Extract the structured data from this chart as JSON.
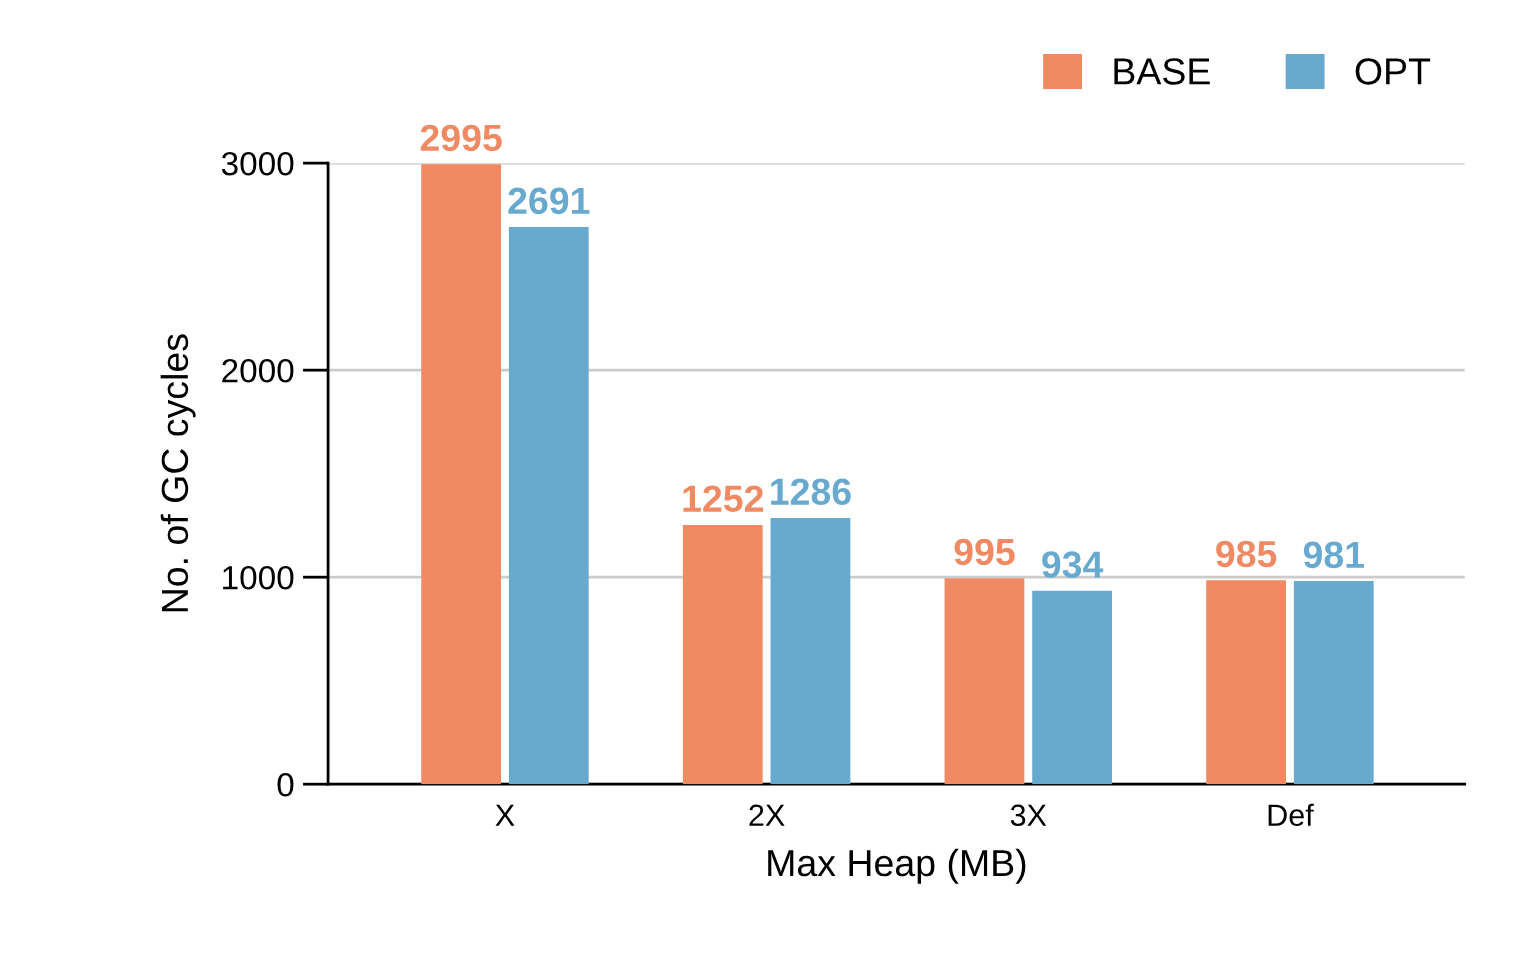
{
  "chart_data": {
    "type": "bar",
    "xlabel": "Max Heap (MB)",
    "ylabel": "No. of GC cycles",
    "categories": [
      "X",
      "2X",
      "3X",
      "Def"
    ],
    "series": [
      {
        "name": "BASE",
        "color": "#ef8a62",
        "values": [
          2995,
          1252,
          995,
          985
        ]
      },
      {
        "name": "OPT",
        "color": "#67a9cf",
        "values": [
          2691,
          1286,
          934,
          981
        ]
      }
    ],
    "ylim": [
      0,
      3000
    ],
    "yticks": [
      0,
      1000,
      2000,
      3000
    ],
    "grid": "y",
    "legend": "top right",
    "data_labels": true
  }
}
